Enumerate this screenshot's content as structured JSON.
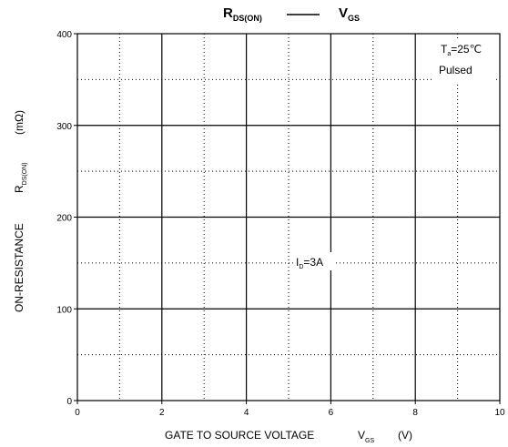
{
  "chart_data": {
    "type": "line",
    "title": {
      "main_left": "R",
      "main_left_sub": "DS(ON)",
      "main_right": "V",
      "main_right_sub": "GS"
    },
    "xlabel": {
      "text": "GATE TO SOURCE VOLTAGE",
      "symbol": "V",
      "symbol_sub": "GS",
      "unit": "(V)"
    },
    "ylabel": {
      "text": "ON-RESISTANCE",
      "symbol": "R",
      "symbol_sub": "DS(ON)",
      "unit": "(mΩ)"
    },
    "xlim": [
      0,
      10
    ],
    "ylim": [
      0,
      400
    ],
    "x_ticks": [
      "0",
      "2",
      "4",
      "6",
      "8",
      "10"
    ],
    "y_ticks": [
      "0",
      "100",
      "200",
      "300",
      "400"
    ],
    "grid": true,
    "annotations": [
      {
        "id": "condition-ta",
        "prefix": "T",
        "sub": "a",
        "suffix": "=25℃"
      },
      {
        "id": "condition-pulsed",
        "text": "Pulsed"
      },
      {
        "id": "current-label",
        "prefix": "I",
        "sub": "D",
        "suffix": "=3A"
      }
    ],
    "series": []
  }
}
